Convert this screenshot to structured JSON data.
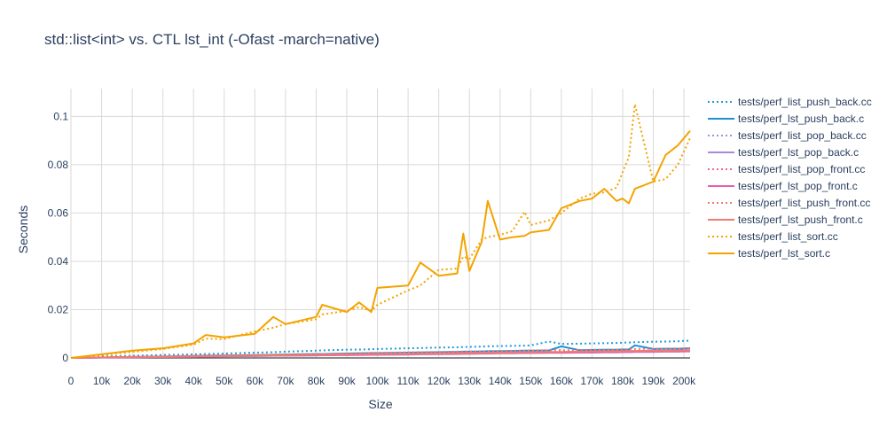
{
  "chart_data": {
    "type": "line",
    "title": "std::list<int> vs. CTL lst_int (-Ofast -march=native)",
    "xlabel": "Size",
    "ylabel": "Seconds",
    "xlim": [
      0,
      202000
    ],
    "ylim": [
      0,
      0.1115
    ],
    "x_ticks": [
      {
        "value": 0,
        "label": "0"
      },
      {
        "value": 10000,
        "label": "10k"
      },
      {
        "value": 20000,
        "label": "20k"
      },
      {
        "value": 30000,
        "label": "30k"
      },
      {
        "value": 40000,
        "label": "40k"
      },
      {
        "value": 50000,
        "label": "50k"
      },
      {
        "value": 60000,
        "label": "60k"
      },
      {
        "value": 70000,
        "label": "70k"
      },
      {
        "value": 80000,
        "label": "80k"
      },
      {
        "value": 90000,
        "label": "90k"
      },
      {
        "value": 100000,
        "label": "100k"
      },
      {
        "value": 110000,
        "label": "110k"
      },
      {
        "value": 120000,
        "label": "120k"
      },
      {
        "value": 130000,
        "label": "130k"
      },
      {
        "value": 140000,
        "label": "140k"
      },
      {
        "value": 150000,
        "label": "150k"
      },
      {
        "value": 160000,
        "label": "160k"
      },
      {
        "value": 170000,
        "label": "170k"
      },
      {
        "value": 180000,
        "label": "180k"
      },
      {
        "value": 190000,
        "label": "190k"
      },
      {
        "value": 200000,
        "label": "200k"
      }
    ],
    "y_ticks": [
      {
        "value": 0,
        "label": "0"
      },
      {
        "value": 0.02,
        "label": "0.02"
      },
      {
        "value": 0.04,
        "label": "0.04"
      },
      {
        "value": 0.06,
        "label": "0.06"
      },
      {
        "value": 0.08,
        "label": "0.08"
      },
      {
        "value": 0.1,
        "label": "0.1"
      }
    ],
    "grid": true,
    "legend_position": "right",
    "x": [
      0,
      10000,
      20000,
      30000,
      40000,
      44000,
      50000,
      60000,
      66000,
      70000,
      80000,
      82000,
      90000,
      94000,
      98000,
      100000,
      110000,
      114000,
      120000,
      126000,
      128000,
      130000,
      134000,
      136000,
      140000,
      144000,
      148000,
      150000,
      156000,
      160000,
      166000,
      170000,
      174000,
      178000,
      180000,
      182000,
      184000,
      190000,
      194000,
      198000,
      202000
    ],
    "series": [
      {
        "name": "tests/perf_list_push_back.cc",
        "color": "#1f9bd6",
        "dash": "dot",
        "values": [
          0,
          0.0006,
          0.0009,
          0.0012,
          0.0015,
          0.0016,
          0.0018,
          0.0022,
          0.0024,
          0.0026,
          0.003,
          0.0031,
          0.0034,
          0.0035,
          0.0036,
          0.0037,
          0.004,
          0.0041,
          0.0043,
          0.0044,
          0.0045,
          0.0046,
          0.0047,
          0.0048,
          0.0049,
          0.005,
          0.0051,
          0.0052,
          0.0068,
          0.0058,
          0.0059,
          0.006,
          0.0061,
          0.0062,
          0.0063,
          0.0064,
          0.0065,
          0.0067,
          0.0068,
          0.0069,
          0.0072
        ]
      },
      {
        "name": "tests/perf_lst_push_back.c",
        "color": "#1f8fd8",
        "dash": "solid",
        "values": [
          0,
          0.0002,
          0.0004,
          0.0006,
          0.0008,
          0.0009,
          0.001,
          0.0012,
          0.0013,
          0.0014,
          0.0016,
          0.0016,
          0.0018,
          0.0019,
          0.002,
          0.002,
          0.0022,
          0.0023,
          0.0024,
          0.0025,
          0.0026,
          0.0026,
          0.0027,
          0.0028,
          0.0028,
          0.0029,
          0.003,
          0.003,
          0.0031,
          0.0048,
          0.0032,
          0.0033,
          0.0034,
          0.0034,
          0.0035,
          0.0035,
          0.0052,
          0.0037,
          0.0038,
          0.0038,
          0.004
        ]
      },
      {
        "name": "tests/perf_list_pop_back.cc",
        "color": "#a48ae0",
        "dash": "dot",
        "values": [
          0,
          0.0002,
          0.0003,
          0.0005,
          0.0006,
          0.0007,
          0.0008,
          0.0009,
          0.001,
          0.0011,
          0.0012,
          0.0012,
          0.0013,
          0.0014,
          0.0015,
          0.0015,
          0.0016,
          0.0017,
          0.0018,
          0.0019,
          0.0019,
          0.002,
          0.002,
          0.0021,
          0.0021,
          0.0022,
          0.0022,
          0.0023,
          0.0024,
          0.0024,
          0.0025,
          0.0025,
          0.0026,
          0.0026,
          0.0027,
          0.0027,
          0.0028,
          0.0028,
          0.0029,
          0.0029,
          0.003
        ]
      },
      {
        "name": "tests/perf_lst_pop_back.c",
        "color": "#a48ae0",
        "dash": "solid",
        "values": [
          0,
          0.0002,
          0.0003,
          0.0004,
          0.0005,
          0.0006,
          0.0007,
          0.0008,
          0.0009,
          0.0009,
          0.001,
          0.0011,
          0.0012,
          0.0012,
          0.0013,
          0.0013,
          0.0014,
          0.0015,
          0.0016,
          0.0016,
          0.0017,
          0.0017,
          0.0018,
          0.0018,
          0.0019,
          0.0019,
          0.002,
          0.002,
          0.0021,
          0.0021,
          0.0022,
          0.0022,
          0.0023,
          0.0023,
          0.0024,
          0.0024,
          0.0025,
          0.0025,
          0.0026,
          0.0026,
          0.0027
        ]
      },
      {
        "name": "tests/perf_list_pop_front.cc",
        "color": "#e8679f",
        "dash": "dot",
        "values": [
          0,
          0.0002,
          0.0004,
          0.0005,
          0.0006,
          0.0007,
          0.0008,
          0.0009,
          0.001,
          0.0011,
          0.0012,
          0.0013,
          0.0014,
          0.0014,
          0.0015,
          0.0016,
          0.0017,
          0.0018,
          0.0019,
          0.0019,
          0.002,
          0.002,
          0.0021,
          0.0022,
          0.0022,
          0.0023,
          0.0023,
          0.0024,
          0.0025,
          0.0025,
          0.0026,
          0.0026,
          0.0027,
          0.0027,
          0.0028,
          0.0028,
          0.0029,
          0.003,
          0.003,
          0.0031,
          0.0031
        ]
      },
      {
        "name": "tests/perf_lst_pop_front.c",
        "color": "#ea5fa8",
        "dash": "solid",
        "values": [
          0,
          0.0002,
          0.0003,
          0.0004,
          0.0005,
          0.0006,
          0.0007,
          0.0008,
          0.0009,
          0.001,
          0.0011,
          0.0011,
          0.0012,
          0.0013,
          0.0013,
          0.0014,
          0.0015,
          0.0016,
          0.0016,
          0.0017,
          0.0018,
          0.0018,
          0.0019,
          0.0019,
          0.002,
          0.002,
          0.0021,
          0.0021,
          0.0022,
          0.0022,
          0.0023,
          0.0023,
          0.0024,
          0.0024,
          0.0025,
          0.0025,
          0.0026,
          0.0026,
          0.0027,
          0.0027,
          0.0028
        ]
      },
      {
        "name": "tests/perf_list_push_front.cc",
        "color": "#f0786c",
        "dash": "dot",
        "values": [
          0,
          0.0003,
          0.0005,
          0.0007,
          0.0009,
          0.001,
          0.0011,
          0.0013,
          0.0014,
          0.0015,
          0.0017,
          0.0017,
          0.0019,
          0.002,
          0.0021,
          0.0021,
          0.0023,
          0.0024,
          0.0025,
          0.0026,
          0.0026,
          0.0027,
          0.0028,
          0.0028,
          0.0029,
          0.003,
          0.003,
          0.0031,
          0.0032,
          0.0032,
          0.0033,
          0.0034,
          0.0035,
          0.0035,
          0.0036,
          0.0036,
          0.0037,
          0.0038,
          0.0039,
          0.0039,
          0.004
        ]
      },
      {
        "name": "tests/perf_lst_push_front.c",
        "color": "#f17b72",
        "dash": "solid",
        "values": [
          0,
          0.0002,
          0.0004,
          0.0005,
          0.0007,
          0.0007,
          0.0008,
          0.001,
          0.0011,
          0.0011,
          0.0013,
          0.0013,
          0.0014,
          0.0015,
          0.0016,
          0.0016,
          0.0018,
          0.0018,
          0.0019,
          0.002,
          0.002,
          0.0021,
          0.0021,
          0.0022,
          0.0022,
          0.0023,
          0.0024,
          0.0024,
          0.0025,
          0.0025,
          0.0026,
          0.0027,
          0.0027,
          0.0028,
          0.0028,
          0.0029,
          0.0029,
          0.003,
          0.003,
          0.0031,
          0.0032
        ]
      },
      {
        "name": "tests/perf_list_sort.cc",
        "color": "#f4a300",
        "dash": "dot",
        "values": [
          0,
          0.0012,
          0.0025,
          0.0037,
          0.0055,
          0.008,
          0.0078,
          0.011,
          0.0125,
          0.014,
          0.016,
          0.018,
          0.0195,
          0.021,
          0.0195,
          0.022,
          0.028,
          0.03,
          0.0365,
          0.037,
          0.042,
          0.041,
          0.049,
          0.05,
          0.051,
          0.0525,
          0.0605,
          0.055,
          0.057,
          0.06,
          0.066,
          0.068,
          0.0685,
          0.0705,
          0.077,
          0.083,
          0.105,
          0.073,
          0.074,
          0.08,
          0.091
        ]
      },
      {
        "name": "tests/perf_lst_sort.c",
        "color": "#f4a300",
        "dash": "solid",
        "values": [
          0,
          0.0015,
          0.003,
          0.004,
          0.006,
          0.0095,
          0.0085,
          0.01,
          0.017,
          0.014,
          0.017,
          0.022,
          0.019,
          0.023,
          0.019,
          0.029,
          0.03,
          0.0395,
          0.034,
          0.035,
          0.0515,
          0.036,
          0.048,
          0.065,
          0.049,
          0.05,
          0.0505,
          0.052,
          0.053,
          0.062,
          0.065,
          0.066,
          0.07,
          0.065,
          0.066,
          0.064,
          0.07,
          0.073,
          0.084,
          0.088,
          0.094
        ]
      }
    ]
  }
}
